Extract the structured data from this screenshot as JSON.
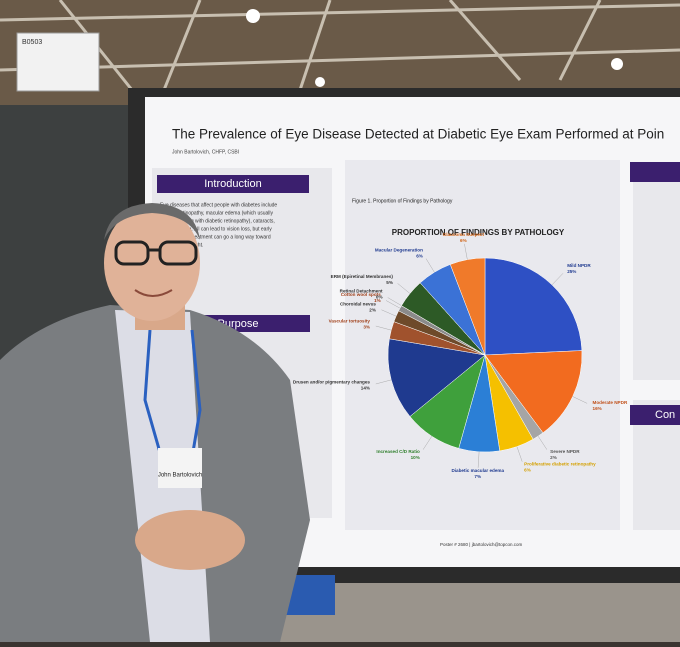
{
  "sign": "B0503",
  "poster": {
    "title": "The Prevalence of Eye Disease Detected at Diabetic Eye Exam Performed at Poin",
    "author": "John Bartolovich, CHFP, CSBI",
    "sections": [
      "Introduction",
      "Purpose",
      "Con"
    ],
    "intro_lines": [
      "Eye diseases that affect people with diabetes include",
      "diabetic retinopathy, macular edema (which usually",
      "develops along with diabetic retinopathy), cataracts,",
      "and glaucoma. All can lead to vision loss, but early",
      "detection and treatment can go a long way toward",
      "protecting eyesight."
    ],
    "figure_caption": "Figure 1. Proportion of Findings by Pathology",
    "footer": "Poster # 2680 | jbartolovich@topcon.com"
  },
  "badge_name": "John Bartolovich",
  "chart_data": {
    "type": "pie",
    "title": "PROPORTION OF FINDINGS BY PATHOLOGY",
    "categories": [
      "Mild NPDR",
      "Moderate NPDR",
      "Severe NPDR",
      "Proliferative diabetic retinopathy",
      "Diabetic macular edema",
      "Increased C/D Ratio",
      "Drusen and/or pigmentary changes",
      "Vascular tortuosity",
      "Choroidal nevus",
      "Cotton wool spots",
      "Retinal Detachment",
      "ERM (Epiretinal Membranes)",
      "Macular Degeneration",
      "Glaucoma Suspect"
    ],
    "values": [
      25,
      16,
      2,
      6,
      7,
      10,
      14,
      3,
      2,
      1,
      0,
      5,
      6,
      6
    ],
    "value_labels": [
      "25%",
      "16%",
      "2%",
      "6%",
      "7%",
      "10%",
      "14%",
      "3%",
      "2%",
      "1%",
      "0%",
      "5%",
      "6%",
      "6%"
    ],
    "colors": [
      "#2e50c4",
      "#f26b1f",
      "#a5a5a5",
      "#f5c000",
      "#2b7fd6",
      "#3fa03c",
      "#1f3a8f",
      "#a0522d",
      "#6e4a2a",
      "#8a8a8a",
      "#555555",
      "#2d5a26",
      "#3b72d6",
      "#f07a2a"
    ],
    "label_colors": [
      "#1f3a8f",
      "#c0501a",
      "#555555",
      "#d4a000",
      "#1f3a8f",
      "#2f7f2c",
      "#333333",
      "#a0401a",
      "#333333",
      "#a0401a",
      "#333333",
      "#333333",
      "#1f3a8f",
      "#d06010"
    ]
  }
}
